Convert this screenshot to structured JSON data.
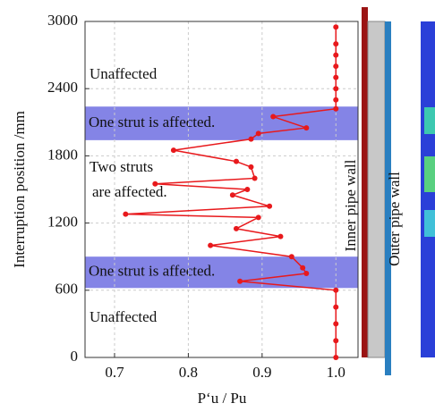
{
  "chart_data": {
    "type": "line",
    "xlabel": "P‘u / Pu",
    "ylabel": "Interruption position /mm",
    "xlim": [
      0.66,
      1.03
    ],
    "ylim": [
      0,
      3000
    ],
    "xticks": [
      0.7,
      0.8,
      0.9,
      {
        "value": 1,
        "label": "1.0"
      }
    ],
    "yticks": [
      0,
      600,
      1200,
      1800,
      2400,
      3000
    ],
    "grid": true,
    "series": [
      {
        "color": "#e8191c",
        "x": [
          1.0,
          1.0,
          1.0,
          1.0,
          1.0,
          0.87,
          0.96,
          0.955,
          0.94,
          0.83,
          0.925,
          0.865,
          0.895,
          0.715,
          0.91,
          0.86,
          0.88,
          0.755,
          0.89,
          0.885,
          0.865,
          0.78,
          0.885,
          0.895,
          0.96,
          0.915,
          1.0,
          1.0,
          1.0,
          1.0,
          1.0,
          1.0,
          1.0,
          1.0
        ],
        "values": [
          0,
          150,
          300,
          450,
          600,
          680,
          750,
          800,
          900,
          1000,
          1080,
          1150,
          1250,
          1280,
          1350,
          1450,
          1500,
          1550,
          1600,
          1700,
          1750,
          1850,
          1950,
          2000,
          2050,
          2150,
          2220,
          2300,
          2400,
          2500,
          2600,
          2700,
          2800,
          2950
        ]
      }
    ],
    "bands": [
      {
        "label": "One strut is affected.",
        "range": [
          620,
          900
        ]
      },
      {
        "label": "One strut is affected.",
        "range": [
          1940,
          2240
        ]
      }
    ],
    "annotations": [
      "Unaffected",
      "Unaffected",
      "Two struts",
      "are affected."
    ],
    "walls": [
      "Inner pipe wall",
      "Outer pipe wall"
    ]
  }
}
